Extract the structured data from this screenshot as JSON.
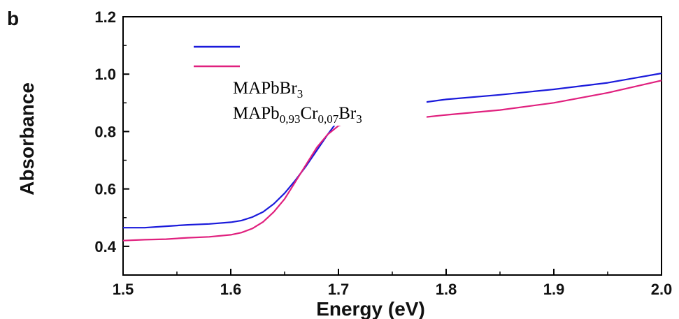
{
  "chart_data": {
    "type": "line",
    "panel_label": "b",
    "xlabel": "Energy (eV)",
    "ylabel": "Absorbance",
    "xlim": [
      1.5,
      2.0
    ],
    "ylim": [
      0.3,
      1.2
    ],
    "x_ticks": [
      1.5,
      1.6,
      1.7,
      1.8,
      1.9,
      2.0
    ],
    "x_tick_labels": [
      "1.5",
      "1.6",
      "1.7",
      "1.8",
      "1.9",
      "2.0"
    ],
    "y_ticks": [
      0.4,
      0.6,
      0.8,
      1.0,
      1.2
    ],
    "y_tick_labels": [
      "0.4",
      "0.6",
      "0.8",
      "1.0",
      "1.2"
    ],
    "grid": false,
    "legend_position": "top-left",
    "legend": {
      "line1": {
        "base": "MAPbBr",
        "sub": "3"
      },
      "line2": {
        "p1": "MAPb",
        "s1": "0,93",
        "p2": "Cr",
        "s2": "0,07",
        "p3": "Br",
        "s3": "3"
      }
    },
    "series": [
      {
        "color": "#1a1adb",
        "x": [
          1.5,
          1.52,
          1.54,
          1.56,
          1.58,
          1.6,
          1.61,
          1.62,
          1.63,
          1.64,
          1.65,
          1.66,
          1.67,
          1.68,
          1.69,
          1.7,
          1.71,
          1.72,
          1.74,
          1.76,
          1.78,
          1.8,
          1.85,
          1.9,
          1.95,
          2.0
        ],
        "y": [
          0.465,
          0.465,
          0.47,
          0.475,
          0.478,
          0.484,
          0.49,
          0.502,
          0.52,
          0.548,
          0.585,
          0.63,
          0.68,
          0.735,
          0.79,
          0.84,
          0.875,
          0.89,
          0.9,
          0.905,
          0.902,
          0.912,
          0.928,
          0.947,
          0.97,
          1.003
        ]
      },
      {
        "color": "#e0207e",
        "x": [
          1.5,
          1.52,
          1.54,
          1.56,
          1.58,
          1.6,
          1.61,
          1.62,
          1.63,
          1.64,
          1.65,
          1.66,
          1.67,
          1.68,
          1.69,
          1.7,
          1.71,
          1.72,
          1.74,
          1.76,
          1.78,
          1.8,
          1.85,
          1.9,
          1.95,
          2.0
        ],
        "y": [
          0.42,
          0.423,
          0.425,
          0.43,
          0.433,
          0.44,
          0.448,
          0.462,
          0.485,
          0.52,
          0.565,
          0.625,
          0.685,
          0.745,
          0.79,
          0.82,
          0.835,
          0.842,
          0.845,
          0.848,
          0.85,
          0.858,
          0.875,
          0.9,
          0.935,
          0.978
        ]
      }
    ]
  }
}
